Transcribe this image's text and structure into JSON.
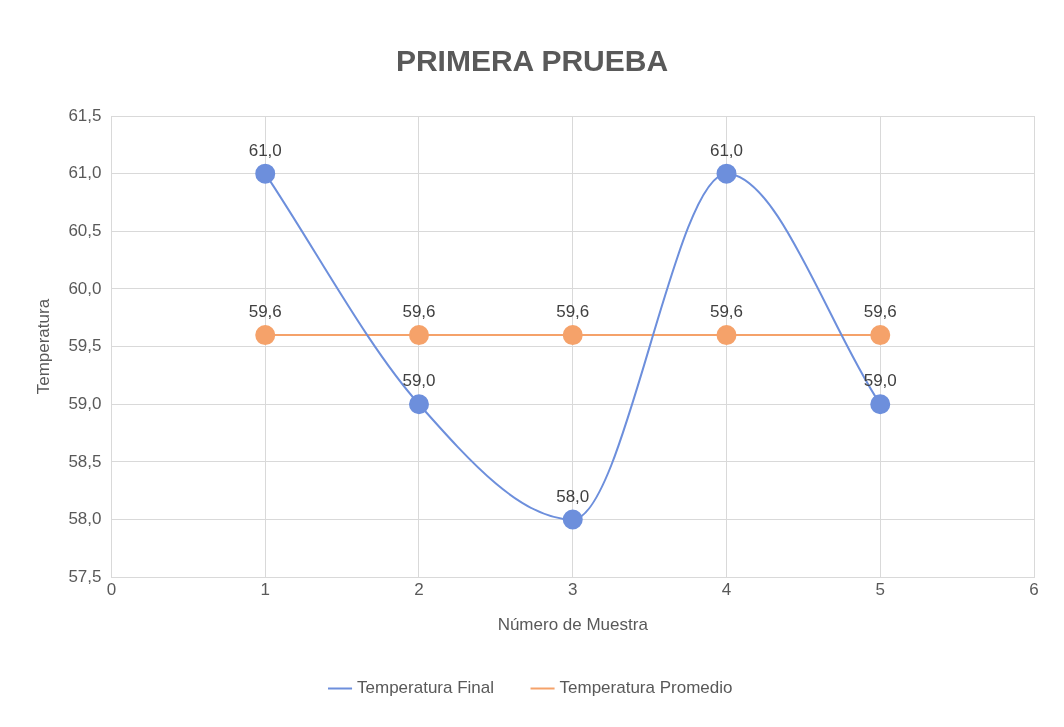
{
  "chart_data": {
    "type": "line",
    "title": "PRIMERA PRUEBA",
    "xlabel": "Número de Muestra",
    "ylabel": "Temperatura",
    "x": [
      1,
      2,
      3,
      4,
      5
    ],
    "series": [
      {
        "name": "Temperatura Final",
        "color": "#6d8fdc",
        "values": [
          61.0,
          59.0,
          58.0,
          61.0,
          59.0
        ],
        "value_labels": [
          "61,0",
          "59,0",
          "58,0",
          "61,0",
          "59,0"
        ]
      },
      {
        "name": "Temperatura Promedio",
        "color": "#f5a26a",
        "values": [
          59.6,
          59.6,
          59.6,
          59.6,
          59.6
        ],
        "value_labels": [
          "59,6",
          "59,6",
          "59,6",
          "59,6",
          "59,6"
        ]
      }
    ],
    "xlim": [
      0,
      6
    ],
    "xticks": [
      0,
      1,
      2,
      3,
      4,
      5,
      6
    ],
    "ylim": [
      57.5,
      61.5
    ],
    "yticks": [
      {
        "value": 57.5,
        "label": "57,5"
      },
      {
        "value": 58,
        "label": "58,0"
      },
      {
        "value": 58.5,
        "label": "58,5"
      },
      {
        "value": 59,
        "label": "59,0"
      },
      {
        "value": 59.5,
        "label": "59,5"
      },
      {
        "value": 60,
        "label": "60,0"
      },
      {
        "value": 60.5,
        "label": "60,5"
      },
      {
        "value": 61,
        "label": "61,0"
      },
      {
        "value": 61.5,
        "label": "61,5"
      }
    ],
    "grid": true,
    "legend": "bottom",
    "marker": "circle",
    "line_style": "solid"
  }
}
